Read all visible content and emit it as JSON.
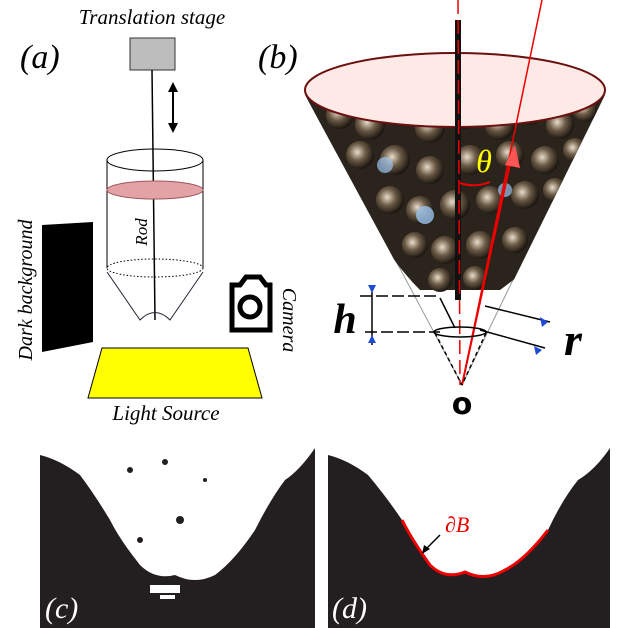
{
  "panels": [
    {
      "label": "(a)",
      "texts": {
        "stage": "Translation stage",
        "rod": "Rod",
        "background": "Dark background",
        "camera": "Camera",
        "light": "Light Source"
      }
    },
    {
      "label": "(b)",
      "texts": {
        "angle": "θ",
        "height": "h",
        "radius": "r",
        "origin": "o"
      }
    },
    {
      "label": "(c)"
    },
    {
      "label": "(d)",
      "texts": {
        "boundary": "∂B"
      }
    }
  ]
}
